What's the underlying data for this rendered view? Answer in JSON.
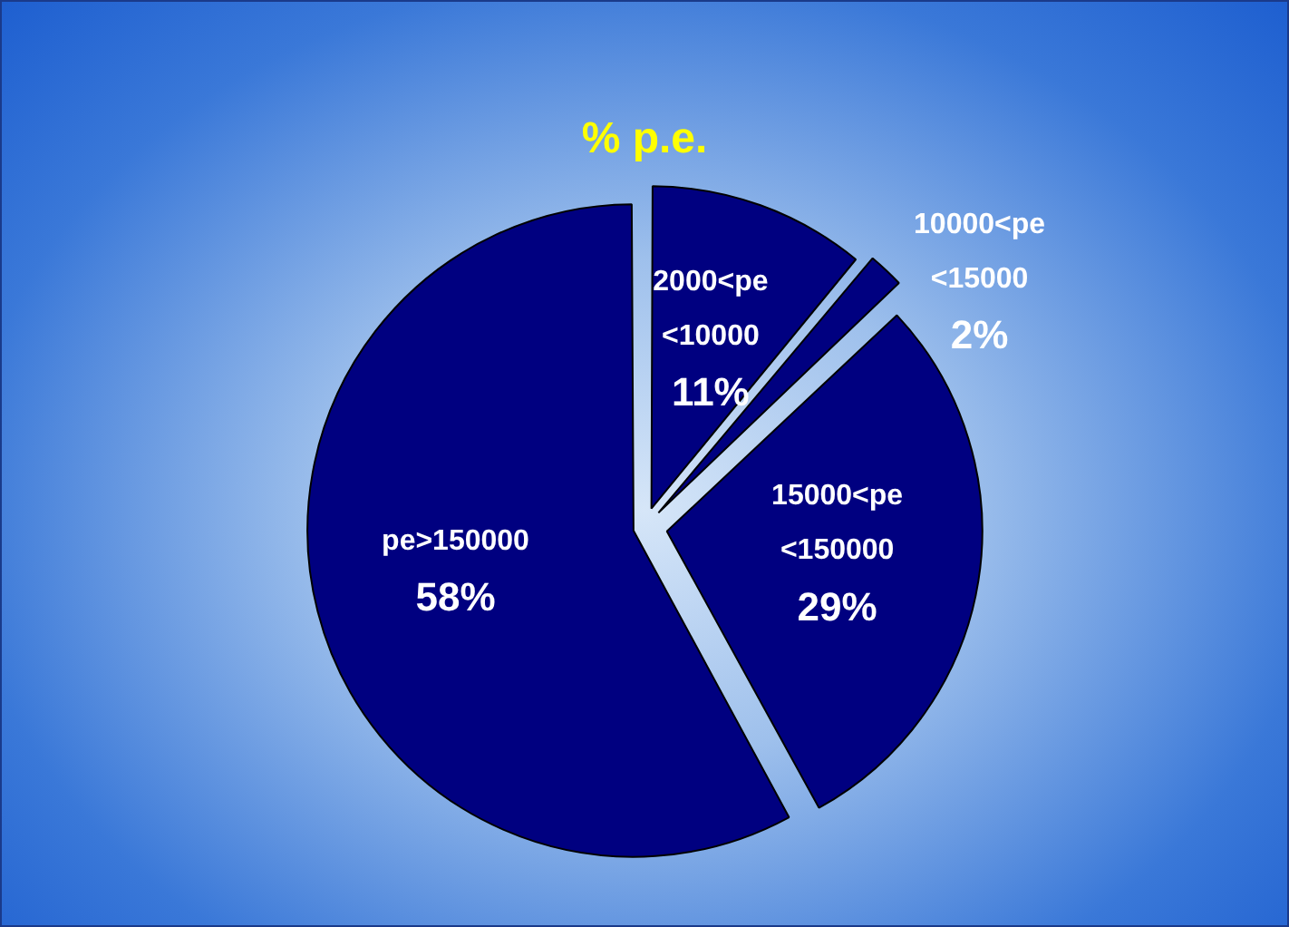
{
  "chart_data": {
    "type": "pie",
    "title": "% p.e.",
    "categories": [
      "2000<pe <10000",
      "10000<pe <15000",
      "15000<pe <150000",
      "pe>150000"
    ],
    "values": [
      11,
      2,
      29,
      58
    ],
    "value_labels": [
      "11%",
      "2%",
      "29%",
      "58%"
    ],
    "colors": [
      "#000080",
      "#000080",
      "#000080",
      "#000080"
    ],
    "legend": false
  }
}
